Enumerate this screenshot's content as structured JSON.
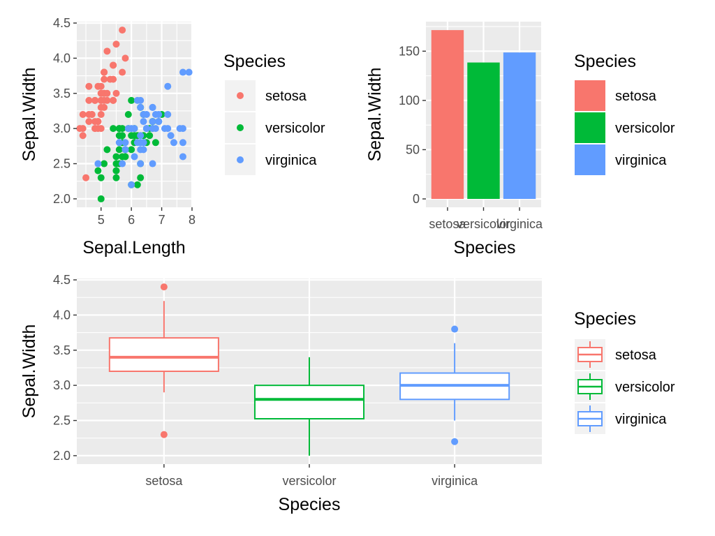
{
  "colors": {
    "setosa": "#F8766D",
    "versicolor": "#00BA38",
    "virginica": "#619CFF"
  },
  "chart_data": [
    {
      "type": "scatter",
      "xlabel": "Sepal.Length",
      "ylabel": "Sepal.Width",
      "xlim": [
        4.2,
        8.0
      ],
      "ylim": [
        1.88,
        4.52
      ],
      "x_ticks": [
        5,
        6,
        7,
        8
      ],
      "x_tick_labels": [
        "5",
        "6",
        "7",
        "8"
      ],
      "y_ticks": [
        2.0,
        2.5,
        3.0,
        3.5,
        4.0,
        4.5
      ],
      "y_tick_labels": [
        "2.0",
        "2.5",
        "3.0",
        "3.5",
        "4.0",
        "4.5"
      ],
      "legend": {
        "title": "Species",
        "placement": "right",
        "entries": [
          "setosa",
          "versicolor",
          "virginica"
        ]
      },
      "series": [
        {
          "name": "setosa",
          "x": [
            5.1,
            4.9,
            4.7,
            4.6,
            5.0,
            5.4,
            4.6,
            5.0,
            4.4,
            4.9,
            5.4,
            4.8,
            4.8,
            4.3,
            5.8,
            5.7,
            5.4,
            5.1,
            5.7,
            5.1,
            5.4,
            5.1,
            4.6,
            5.1,
            4.8,
            5.0,
            5.0,
            5.2,
            5.2,
            4.7,
            4.8,
            5.4,
            5.2,
            5.5,
            4.9,
            5.0,
            5.5,
            4.9,
            4.4,
            5.1,
            5.0,
            4.5,
            4.4,
            5.0,
            5.1,
            4.8,
            5.1,
            4.6,
            5.3,
            5.0
          ],
          "y": [
            3.5,
            3.0,
            3.2,
            3.1,
            3.6,
            3.9,
            3.4,
            3.4,
            2.9,
            3.1,
            3.7,
            3.4,
            3.0,
            3.0,
            4.0,
            4.4,
            3.9,
            3.5,
            3.8,
            3.8,
            3.4,
            3.7,
            3.6,
            3.3,
            3.4,
            3.0,
            3.4,
            3.5,
            3.4,
            3.2,
            3.1,
            3.4,
            4.1,
            4.2,
            3.1,
            3.2,
            3.5,
            3.6,
            3.0,
            3.4,
            3.5,
            2.3,
            3.2,
            3.5,
            3.8,
            3.0,
            3.8,
            3.2,
            3.7,
            3.3
          ]
        },
        {
          "name": "versicolor",
          "x": [
            7.0,
            6.4,
            6.9,
            5.5,
            6.5,
            5.7,
            6.3,
            4.9,
            6.6,
            5.2,
            5.0,
            5.9,
            6.0,
            6.1,
            5.6,
            6.7,
            5.6,
            5.8,
            6.2,
            5.6,
            5.9,
            6.1,
            6.3,
            6.1,
            6.4,
            6.6,
            6.8,
            6.7,
            6.0,
            5.7,
            5.5,
            5.5,
            5.8,
            6.0,
            5.4,
            6.0,
            6.7,
            6.3,
            5.6,
            5.5,
            5.5,
            6.1,
            5.8,
            5.0,
            5.6,
            5.7,
            5.7,
            6.2,
            5.1,
            5.7
          ],
          "y": [
            3.2,
            3.2,
            3.1,
            2.3,
            2.8,
            2.8,
            3.3,
            2.4,
            2.9,
            2.7,
            2.0,
            3.0,
            2.2,
            2.9,
            2.9,
            3.1,
            3.0,
            2.7,
            2.2,
            2.5,
            3.2,
            2.8,
            2.5,
            2.8,
            2.9,
            3.0,
            2.8,
            3.0,
            2.9,
            2.6,
            2.4,
            2.4,
            2.7,
            2.7,
            3.0,
            3.4,
            3.1,
            2.3,
            3.0,
            2.5,
            2.6,
            3.0,
            2.6,
            2.3,
            2.7,
            3.0,
            2.9,
            2.9,
            2.5,
            2.8
          ]
        },
        {
          "name": "virginica",
          "x": [
            6.3,
            5.8,
            7.1,
            6.3,
            6.5,
            7.6,
            4.9,
            7.3,
            6.7,
            7.2,
            6.5,
            6.4,
            6.8,
            5.7,
            5.8,
            6.4,
            6.5,
            7.7,
            7.7,
            6.0,
            6.9,
            5.6,
            7.7,
            6.3,
            6.7,
            7.2,
            6.2,
            6.1,
            6.4,
            7.2,
            7.4,
            7.9,
            6.4,
            6.3,
            6.1,
            7.7,
            6.3,
            6.4,
            6.0,
            6.9,
            6.7,
            6.9,
            5.8,
            6.8,
            6.7,
            6.7,
            6.3,
            6.5,
            6.2,
            5.9
          ],
          "y": [
            3.3,
            2.7,
            3.0,
            2.9,
            3.0,
            3.0,
            2.5,
            2.9,
            2.5,
            3.6,
            3.2,
            2.7,
            3.0,
            2.5,
            2.8,
            3.2,
            3.0,
            3.8,
            2.6,
            2.2,
            3.2,
            2.8,
            2.8,
            2.7,
            3.3,
            3.2,
            2.8,
            3.0,
            2.8,
            3.0,
            2.8,
            3.8,
            2.8,
            2.8,
            2.6,
            3.0,
            3.4,
            3.1,
            3.0,
            3.1,
            3.1,
            3.1,
            2.7,
            3.2,
            3.3,
            3.0,
            2.5,
            3.0,
            3.4,
            3.0
          ]
        }
      ]
    },
    {
      "type": "bar",
      "xlabel": "Species",
      "ylabel": "Sepal.Width",
      "categories": [
        "setosa",
        "versicolor",
        "virginica"
      ],
      "values": [
        171.4,
        138.5,
        148.7
      ],
      "ylim": [
        -8.5,
        180
      ],
      "y_ticks": [
        0,
        50,
        100,
        150
      ],
      "y_tick_labels": [
        "0",
        "50",
        "100",
        "150"
      ],
      "legend": {
        "title": "Species",
        "placement": "right",
        "entries": [
          "setosa",
          "versicolor",
          "virginica"
        ]
      }
    },
    {
      "type": "box",
      "xlabel": "Species",
      "ylabel": "Sepal.Width",
      "categories": [
        "setosa",
        "versicolor",
        "virginica"
      ],
      "ylim": [
        1.88,
        4.52
      ],
      "y_ticks": [
        2.0,
        2.5,
        3.0,
        3.5,
        4.0,
        4.5
      ],
      "y_tick_labels": [
        "2.0",
        "2.5",
        "3.0",
        "3.5",
        "4.0",
        "4.5"
      ],
      "boxes": [
        {
          "name": "setosa",
          "whisker_low": 2.9,
          "q1": 3.2,
          "median": 3.4,
          "q3": 3.675,
          "whisker_high": 4.2,
          "outliers": [
            4.4,
            2.3
          ]
        },
        {
          "name": "versicolor",
          "whisker_low": 2.0,
          "q1": 2.525,
          "median": 2.8,
          "q3": 3.0,
          "whisker_high": 3.4,
          "outliers": []
        },
        {
          "name": "virginica",
          "whisker_low": 2.5,
          "q1": 2.8,
          "median": 3.0,
          "q3": 3.175,
          "whisker_high": 3.6,
          "outliers": [
            3.8,
            2.2
          ]
        }
      ],
      "legend": {
        "title": "Species",
        "placement": "right",
        "entries": [
          "setosa",
          "versicolor",
          "virginica"
        ]
      }
    }
  ]
}
